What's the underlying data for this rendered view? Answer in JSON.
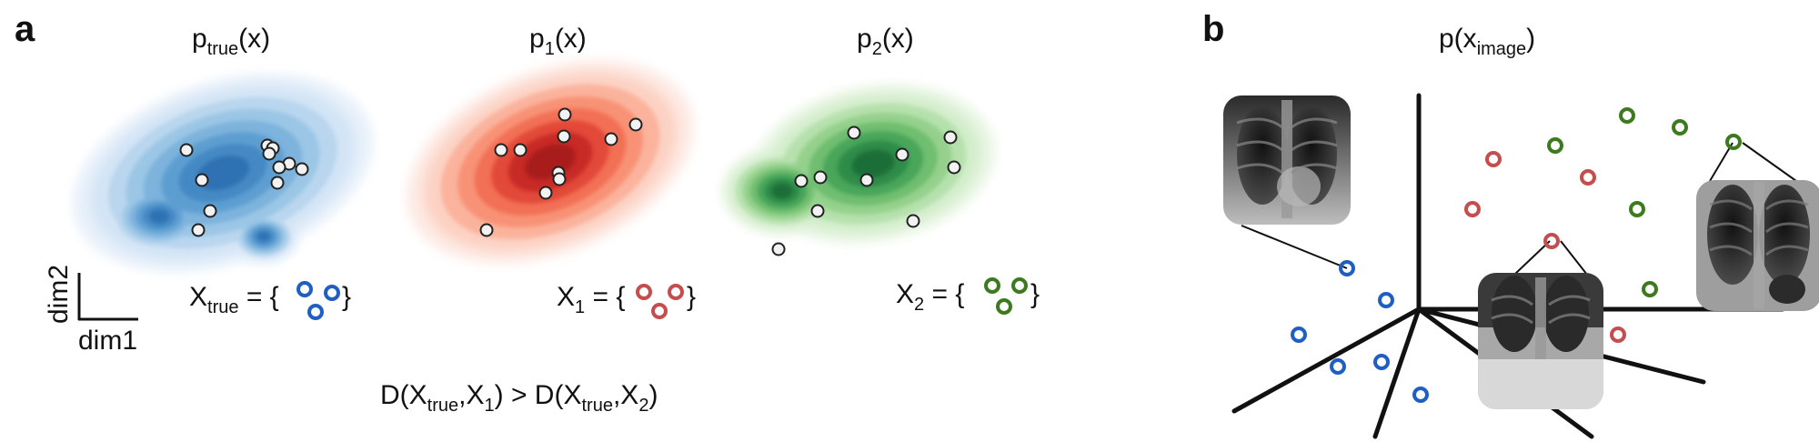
{
  "panel_a": {
    "letter": "a",
    "distributions": [
      {
        "title_main": "p",
        "title_sub": "true",
        "title_tail": "(x)",
        "set_main": "X",
        "set_sub": "true",
        "set_tail": " = {",
        "set_close": "}",
        "color": "#1f5fc4",
        "cmap": [
          "#e7f0fa",
          "#d2e4f5",
          "#b9d6ee",
          "#9bc6e6",
          "#7db3dc",
          "#5d9ed1",
          "#4589c4",
          "#2f72b4"
        ]
      },
      {
        "title_main": "p",
        "title_sub": "1",
        "title_tail": "(x)",
        "set_main": "X",
        "set_sub": "1",
        "set_tail": " = {",
        "set_close": "}",
        "color": "#c44e4e",
        "cmap": [
          "#fde9e3",
          "#fcd1c2",
          "#fbb39d",
          "#f89276",
          "#f26f54",
          "#e24a37",
          "#c82b26",
          "#a81b1f"
        ]
      },
      {
        "title_main": "p",
        "title_sub": "2",
        "title_tail": "(x)",
        "set_main": "X",
        "set_sub": "2",
        "set_tail": " = {",
        "set_close": "}",
        "color": "#3d7a1f",
        "cmap": [
          "#e8f5e3",
          "#d2edca",
          "#b6e1ad",
          "#95d18d",
          "#6fbe70",
          "#4aa65a",
          "#2f8c48",
          "#1e6e37"
        ]
      }
    ],
    "axis_x_label": "dim1",
    "axis_y_label": "dim2",
    "inequality": {
      "p1": "D(X",
      "s1": "true",
      "p2": ",X",
      "s2": "1",
      "p3": ") > D(X",
      "s3": "true",
      "p4": ",X",
      "s4": "2",
      "p5": ")"
    }
  },
  "panel_b": {
    "letter": "b",
    "title_main": "p(x",
    "title_sub": "image",
    "title_tail": ")",
    "point_colors": {
      "true": "#1f5fc4",
      "set1": "#c44e4e",
      "set2": "#3d7a1f"
    },
    "thumbnails": [
      "chest-xray-thumbnail-blue-point",
      "chest-xray-thumbnail-red-point",
      "chest-xray-thumbnail-green-point"
    ]
  }
}
